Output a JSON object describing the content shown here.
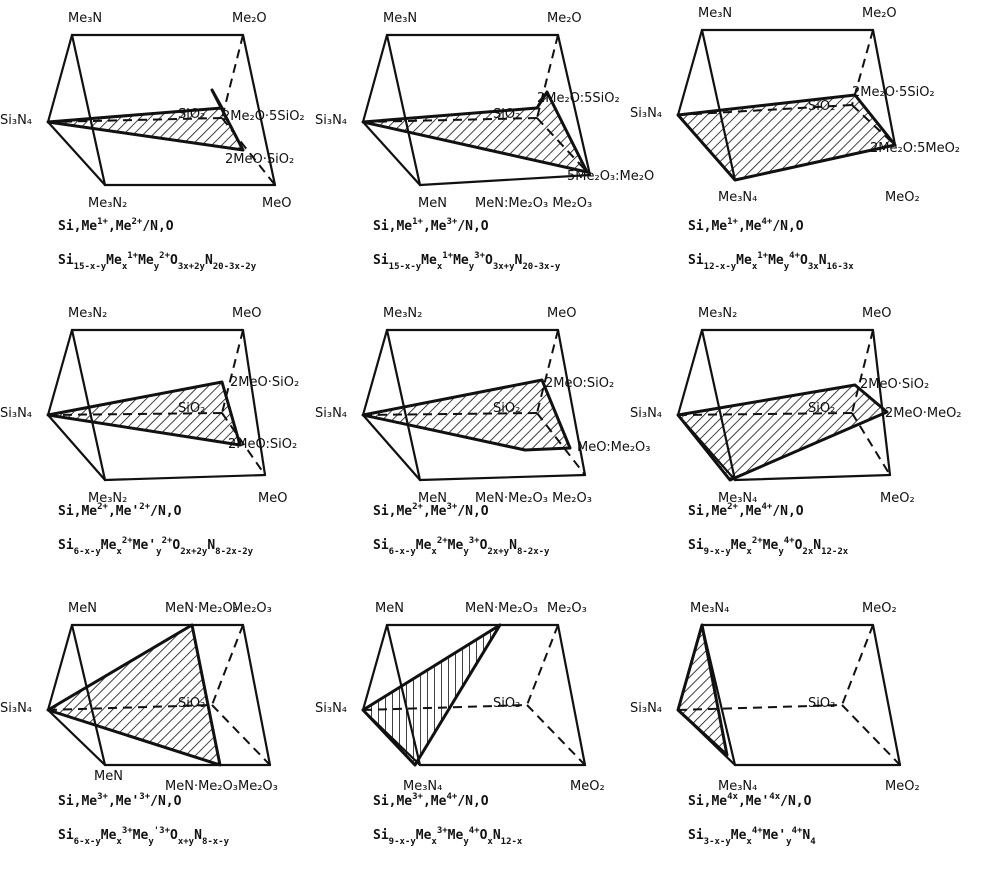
{
  "panels": [
    {
      "labels": {
        "a": "Si₃N₄",
        "b": "Me₃N",
        "c": "Me₃N₂",
        "d": "Me₂O",
        "e": "MeO",
        "s": "SiO₂",
        "p1": "2Me₂O·5SiO₂",
        "p2": "2MeO·SiO₂"
      },
      "system": {
        "base": "Si,Me",
        "s1": "1+",
        "mid": ",Me",
        "s2": "2+",
        "tail": "/N,O"
      },
      "formula": {
        "t1": "Si",
        "s1": "15-x-y",
        "t2": "Me",
        "s2": "x",
        "s3": "1+",
        "t3": "Me",
        "s4": "y",
        "s5": "2+",
        "t4": "O",
        "s6": "3x+2y",
        "t5": "N",
        "s7": "20-3x-2y"
      }
    },
    {
      "labels": {
        "a": "Si₃N₄",
        "b": "Me₃N",
        "c": "MeN",
        "d": "Me₂O",
        "e": "MeN:Me₂O₃ Me₂O₃",
        "s": "SiO₂",
        "p1": "2Me₂O:5SiO₂",
        "p2": "5Me₂O₃:Me₂O"
      },
      "system": {
        "base": "Si,Me",
        "s1": "1+",
        "mid": ",Me",
        "s2": "3+",
        "tail": "/N,O"
      },
      "formula": {
        "t1": "Si",
        "s1": "15-x-y",
        "t2": "Me",
        "s2": "x",
        "s3": "1+",
        "t3": "Me",
        "s4": "y",
        "s5": "3+",
        "t4": "O",
        "s6": "3x+y",
        "t5": "N",
        "s7": "20-3x-y"
      }
    },
    {
      "labels": {
        "a": "Si₃N₄",
        "b": "Me₃N",
        "c": "Me₃N₄",
        "d": "Me₂O",
        "e": "MeO₂",
        "s": "SiO₂",
        "p1": "2Me₂O·5SiO₂",
        "p2": "2Me₂O:5MeO₂"
      },
      "system": {
        "base": "Si,Me",
        "s1": "1+",
        "mid": ",Me",
        "s2": "4+",
        "tail": "/N,O"
      },
      "formula": {
        "t1": "Si",
        "s1": "12-x-y",
        "t2": "Me",
        "s2": "x",
        "s3": "1+",
        "t3": "Me",
        "s4": "y",
        "s5": "4+",
        "t4": "O",
        "s6": "3x",
        "t5": "N",
        "s7": "16-3x"
      }
    },
    {
      "labels": {
        "a": "Si₃N₄",
        "b": "Me₃N₂",
        "c": "Me₃N₂",
        "d": "MeO",
        "e": "MeO",
        "s": "SiO₂",
        "p1": "2MeO·SiO₂",
        "p2": "2MeO:SiO₂"
      },
      "system": {
        "base": "Si,Me",
        "s1": "2+",
        "mid": ",Me'",
        "s2": "2+",
        "tail": "/N,O"
      },
      "formula": {
        "t1": "Si",
        "s1": "6-x-y",
        "t2": "Me",
        "s2": "x",
        "s3": "2+",
        "t3": "Me'",
        "s4": "y",
        "s5": "2+",
        "t4": "O",
        "s6": "2x+2y",
        "t5": "N",
        "s7": "8-2x-2y"
      }
    },
    {
      "labels": {
        "a": "Si₃N₄",
        "b": "Me₃N₂",
        "c": "MeN",
        "d": "MeO",
        "e": "MeN·Me₂O₃ Me₂O₃",
        "s": "SiO₂",
        "p1": "2MeO:SiO₂",
        "p2": "MeO:Me₂O₃"
      },
      "system": {
        "base": "Si,Me",
        "s1": "2+",
        "mid": ",Me",
        "s2": "3+",
        "tail": "/N,O"
      },
      "formula": {
        "t1": "Si",
        "s1": "6-x-y",
        "t2": "Me",
        "s2": "x",
        "s3": "2+",
        "t3": "Me",
        "s4": "y",
        "s5": "3+",
        "t4": "O",
        "s6": "2x+y",
        "t5": "N",
        "s7": "8-2x-y"
      }
    },
    {
      "labels": {
        "a": "Si₃N₄",
        "b": "Me₃N₂",
        "c": "Me₃N₄",
        "d": "MeO",
        "e": "MeO₂",
        "s": "SiO₂",
        "p1": "2MeO·SiO₂",
        "p2": "2MeO·MeO₂"
      },
      "system": {
        "base": "Si,Me",
        "s1": "2+",
        "mid": ",Me",
        "s2": "4+",
        "tail": "/N,O"
      },
      "formula": {
        "t1": "Si",
        "s1": "9-x-y",
        "t2": "Me",
        "s2": "x",
        "s3": "2+",
        "t3": "Me",
        "s4": "y",
        "s5": "4+",
        "t4": "O",
        "s6": "2x",
        "t5": "N",
        "s7": "12-2x"
      }
    },
    {
      "labels": {
        "a": "Si₃N₄",
        "b": "MeN",
        "c": "MeN",
        "d": "Me₂O₃",
        "e": "Me₂O₃",
        "s": "SiO₂",
        "p1": "MeN·Me₂O₃",
        "p2": "MeN·Me₂O₃"
      },
      "system": {
        "base": "Si,Me",
        "s1": "3+",
        "mid": ",Me'",
        "s2": "3+",
        "tail": "/N,O"
      },
      "formula": {
        "t1": "Si",
        "s1": "6-x-y",
        "t2": "Me",
        "s2": "x",
        "s3": "3+",
        "t3": "Me",
        "s4": "y",
        "s5": "'3+",
        "t4": "O",
        "s6": "x+y",
        "t5": "N",
        "s7": "8-x-y"
      }
    },
    {
      "labels": {
        "a": "Si₃N₄",
        "b": "MeN",
        "c": "Me₃N₄",
        "d": "Me₂O₃",
        "e": "MeO₂",
        "s": "SiO₂",
        "p1": "MeN·Me₂O₃",
        "p2": ""
      },
      "system": {
        "base": "Si,Me",
        "s1": "3+",
        "mid": ",Me",
        "s2": "4+",
        "tail": "/N,O"
      },
      "formula": {
        "t1": "Si",
        "s1": "9-x-y",
        "t2": "Me",
        "s2": "x",
        "s3": "3+",
        "t3": "Me",
        "s4": "y",
        "s5": "4+",
        "t4": "O",
        "s6": "x",
        "t5": "N",
        "s7": "12-x"
      }
    },
    {
      "labels": {
        "a": "Si₃N₄",
        "b": "Me₃N₄",
        "c": "Me₃N₄",
        "d": "MeO₂",
        "e": "MeO₂",
        "s": "SiO₂",
        "p1": "",
        "p2": ""
      },
      "system": {
        "base": "Si,Me",
        "s1": "4x",
        "mid": ",Me'",
        "s2": "4x",
        "tail": "/N,O"
      },
      "formula": {
        "t1": "Si",
        "s1": "3-x-y",
        "t2": "Me",
        "s2": "x",
        "s3": "4+",
        "t3": "Me'",
        "s4": "y",
        "s5": "4+",
        "t4": "N",
        "s6": "4",
        "t5": "",
        "s7": ""
      }
    }
  ]
}
